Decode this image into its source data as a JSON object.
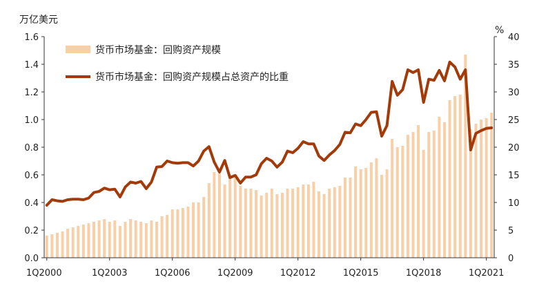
{
  "chart_data": {
    "type": "bar+line",
    "left_unit": "万亿美元",
    "right_unit": "%",
    "left_ylim": [
      0,
      1.6
    ],
    "left_ticks": [
      "0.0",
      "0.2",
      "0.4",
      "0.6",
      "0.8",
      "1.0",
      "1.2",
      "1.4",
      "1.6"
    ],
    "right_ylim": [
      0,
      40
    ],
    "right_ticks": [
      "0",
      "5",
      "10",
      "15",
      "20",
      "25",
      "30",
      "35",
      "40"
    ],
    "x_tick_labels": [
      "1Q2000",
      "1Q2003",
      "1Q2006",
      "1Q2009",
      "1Q2012",
      "1Q2015",
      "1Q2018",
      "1Q2021"
    ],
    "x_tick_indices": [
      0,
      12,
      24,
      36,
      48,
      60,
      72,
      84
    ],
    "grid": false,
    "legend_position": "top-left",
    "bar_color": "#f8cfa6",
    "line_color": "#a33a0a",
    "series": [
      {
        "name": "货币市场基金：回购资产规模",
        "kind": "bar",
        "axis": "left",
        "values": [
          0.16,
          0.17,
          0.18,
          0.19,
          0.21,
          0.22,
          0.23,
          0.24,
          0.25,
          0.26,
          0.27,
          0.28,
          0.26,
          0.27,
          0.23,
          0.26,
          0.28,
          0.27,
          0.26,
          0.25,
          0.27,
          0.26,
          0.3,
          0.31,
          0.35,
          0.35,
          0.36,
          0.37,
          0.4,
          0.4,
          0.44,
          0.54,
          0.62,
          0.61,
          0.53,
          0.6,
          0.6,
          0.52,
          0.5,
          0.5,
          0.49,
          0.45,
          0.47,
          0.5,
          0.46,
          0.47,
          0.5,
          0.5,
          0.51,
          0.53,
          0.53,
          0.55,
          0.48,
          0.46,
          0.5,
          0.51,
          0.52,
          0.58,
          0.58,
          0.66,
          0.64,
          0.65,
          0.69,
          0.72,
          0.6,
          0.64,
          0.86,
          0.8,
          0.81,
          0.89,
          0.91,
          0.96,
          0.78,
          0.91,
          0.92,
          1.02,
          0.98,
          1.14,
          1.17,
          1.18,
          1.47,
          0.93,
          0.97,
          1.0,
          1.01,
          1.05
        ]
      },
      {
        "name": "货币市场基金：回购资产规模占总资产的比重",
        "kind": "line",
        "axis": "right",
        "values": [
          9.5,
          10.5,
          10.3,
          10.2,
          10.5,
          10.6,
          10.6,
          10.5,
          10.8,
          11.8,
          12.0,
          12.6,
          12.3,
          12.4,
          11.0,
          12.8,
          13.7,
          13.5,
          13.8,
          12.5,
          13.7,
          16.4,
          16.5,
          17.5,
          17.2,
          17.1,
          17.2,
          17.2,
          16.6,
          17.5,
          19.3,
          20.1,
          17.3,
          15.5,
          17.6,
          14.5,
          14.9,
          13.5,
          14.6,
          14.6,
          15.0,
          17.0,
          18.0,
          17.5,
          16.4,
          17.3,
          19.3,
          19.0,
          19.8,
          21.0,
          20.6,
          20.6,
          18.4,
          17.6,
          18.6,
          19.4,
          20.5,
          22.7,
          22.6,
          24.2,
          23.9,
          25.0,
          26.3,
          26.4,
          22.0,
          23.9,
          31.9,
          29.4,
          30.4,
          34.0,
          33.5,
          34.0,
          28.1,
          32.3,
          32.1,
          33.9,
          32.0,
          35.4,
          34.5,
          32.3,
          34.0,
          19.5,
          22.5,
          23.0,
          23.4,
          23.5
        ]
      }
    ]
  }
}
